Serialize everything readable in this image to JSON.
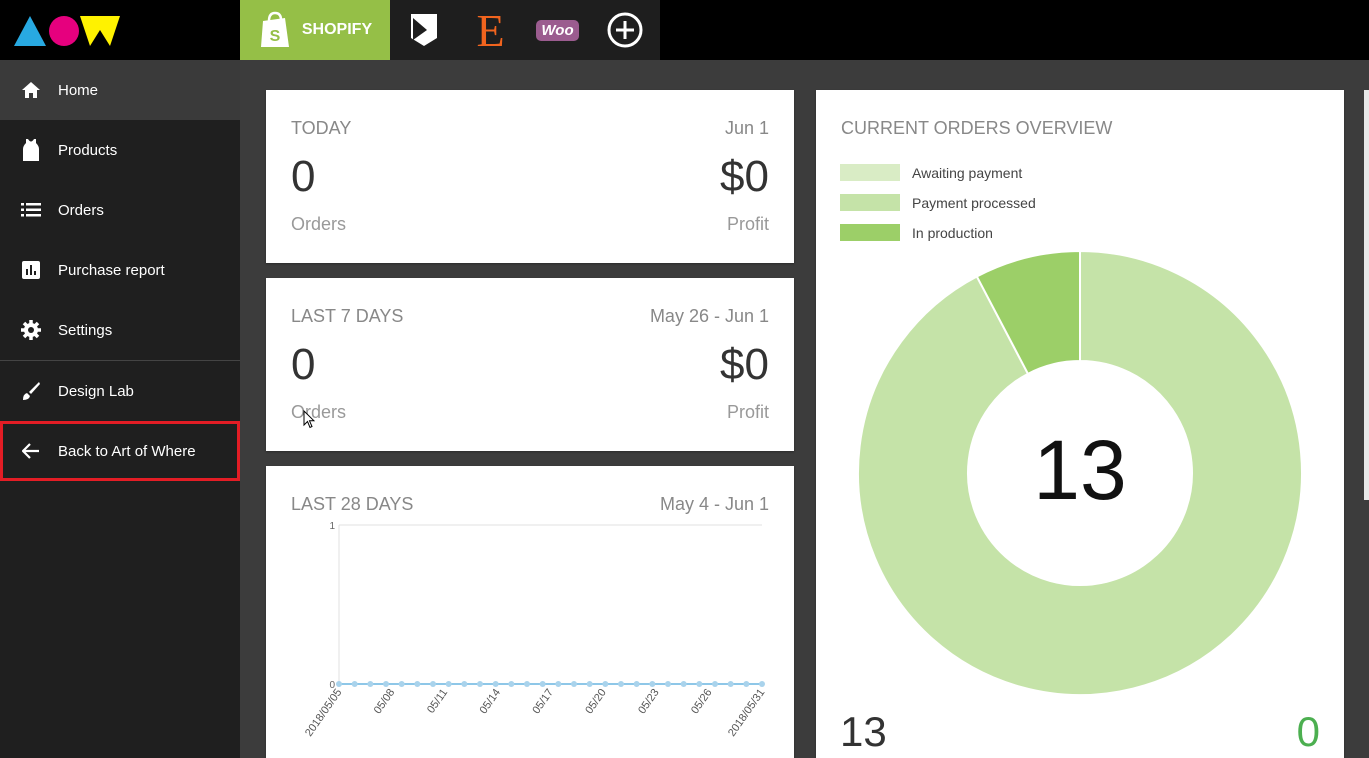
{
  "topbar": {
    "platforms": [
      {
        "name": "shopify-icon",
        "label": "SHOPIFY",
        "active": true
      },
      {
        "name": "bigcommerce-icon"
      },
      {
        "name": "etsy-icon",
        "label": "E"
      },
      {
        "name": "woocommerce-icon",
        "label": "Woo"
      },
      {
        "name": "add-platform-icon"
      }
    ]
  },
  "sidebar": {
    "items": [
      {
        "label": "Home",
        "icon": "home-icon"
      },
      {
        "label": "Products",
        "icon": "tank-top-icon"
      },
      {
        "label": "Orders",
        "icon": "list-icon"
      },
      {
        "label": "Purchase report",
        "icon": "bar-chart-icon"
      },
      {
        "label": "Settings",
        "icon": "gear-icon"
      },
      {
        "label": "Design Lab",
        "icon": "brush-icon"
      },
      {
        "label": "Back to Art of Where",
        "icon": "arrow-left-icon"
      }
    ]
  },
  "today": {
    "title": "TODAY",
    "date": "Jun 1",
    "orders": "0",
    "orders_label": "Orders",
    "profit": "$0",
    "profit_label": "Profit"
  },
  "last7": {
    "title": "LAST 7 DAYS",
    "date": "May 26 - Jun 1",
    "orders": "0",
    "orders_label": "Orders",
    "profit": "$0",
    "profit_label": "Profit"
  },
  "last28": {
    "title": "LAST 28 DAYS",
    "date": "May 4 - Jun 1"
  },
  "chart_data": [
    {
      "type": "line",
      "x_tick_labels": [
        "2018/05/05",
        "05/08",
        "05/11",
        "05/14",
        "05/17",
        "05/20",
        "05/23",
        "05/26",
        "2018/05/31"
      ],
      "ylim": [
        0,
        1
      ],
      "y_ticks": [
        "1",
        "0"
      ],
      "values": [
        0,
        0,
        0,
        0,
        0,
        0,
        0,
        0,
        0,
        0,
        0,
        0,
        0,
        0,
        0,
        0,
        0,
        0,
        0,
        0,
        0,
        0,
        0,
        0,
        0,
        0,
        0,
        0
      ],
      "color": "#8ec7e8",
      "grid": false
    },
    {
      "type": "pie",
      "title": "CURRENT ORDERS OVERVIEW",
      "legend": [
        "Awaiting payment",
        "Payment processed",
        "In production"
      ],
      "legend_colors": [
        "#d9ecc5",
        "#c5e3a8",
        "#9ccf68"
      ],
      "values": [
        0,
        12,
        1
      ],
      "center_label": "13"
    }
  ],
  "overview": {
    "title": "CURRENT ORDERS OVERVIEW",
    "center_total": "13",
    "bottom_left": "13",
    "bottom_right": "0",
    "bottom_right_color": "#4caf50"
  }
}
